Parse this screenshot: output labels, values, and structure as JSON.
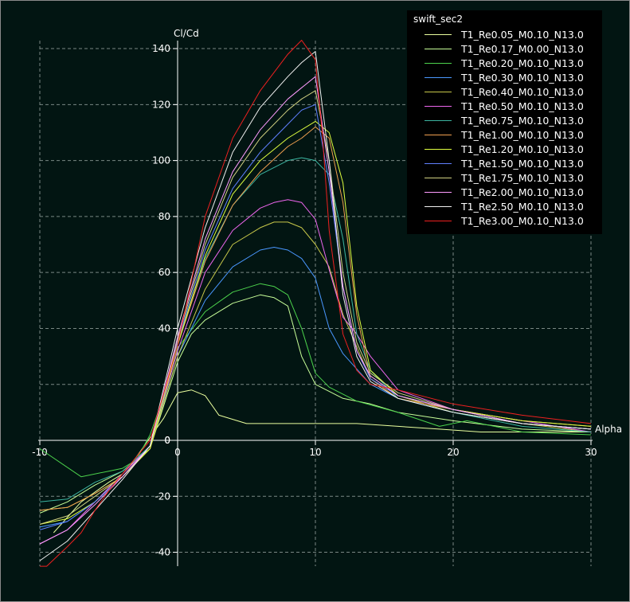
{
  "chart_data": {
    "type": "line",
    "title": "",
    "xlabel": "Alpha",
    "ylabel": "Cl/Cd",
    "xlim": [
      -10,
      30
    ],
    "ylim": [
      -45,
      145
    ],
    "grid": true,
    "legend_title": "swift_sec2",
    "legend_position": "top-right",
    "x_ticks": [
      -10,
      0,
      10,
      20,
      30
    ],
    "y_ticks": [
      -40,
      -20,
      0,
      40,
      60,
      80,
      100,
      120,
      140
    ],
    "series": [
      {
        "name": "T1_Re0.05_M0.10_N13.0",
        "color": "#eaff9e",
        "x": [
          -9,
          -7,
          -5,
          -4,
          -3,
          -2,
          -1,
          0,
          1,
          2,
          3,
          5,
          7,
          10,
          13,
          16,
          19,
          22,
          25,
          30
        ],
        "y": [
          -33,
          -22,
          -15,
          -12,
          -6,
          1,
          8,
          17,
          18,
          16,
          9,
          6,
          6,
          6,
          6,
          5,
          4,
          3,
          3,
          3
        ]
      },
      {
        "name": "T1_Re0.17_M0.00_N13.0",
        "color": "#c8ff99",
        "x": [
          -10,
          -8,
          -6,
          -4,
          -2,
          0,
          1,
          2,
          4,
          6,
          7,
          8,
          9,
          10,
          12,
          14,
          16,
          20,
          25,
          30
        ],
        "y": [
          -26,
          -22,
          -16,
          -11,
          -3,
          28,
          38,
          43,
          49,
          52,
          51,
          48,
          30,
          20,
          15,
          13,
          10,
          7,
          4,
          3
        ]
      },
      {
        "name": "T1_Re0.20_M0.10_N13.0",
        "color": "#4cd24c",
        "x": [
          -10,
          -7,
          -5,
          -4,
          -3,
          -2,
          -1,
          0,
          2,
          4,
          6,
          7,
          8,
          9,
          10,
          11,
          13,
          16,
          19,
          21,
          25,
          30
        ],
        "y": [
          -3,
          -13,
          -11,
          -10,
          -7,
          2,
          16,
          33,
          46,
          53,
          56,
          55,
          52,
          40,
          24,
          19,
          14,
          10,
          5,
          7,
          3,
          2
        ]
      },
      {
        "name": "T1_Re0.30_M0.10_N13.0",
        "color": "#4a97ff",
        "x": [
          -10,
          -8,
          -6,
          -4,
          -2,
          0,
          2,
          4,
          6,
          7,
          8,
          9,
          10,
          11,
          12,
          14,
          16,
          20,
          25,
          30
        ],
        "y": [
          -31,
          -29,
          -22,
          -13,
          -2,
          30,
          50,
          62,
          68,
          69,
          68,
          65,
          58,
          40,
          31,
          20,
          15,
          10,
          6,
          4
        ]
      },
      {
        "name": "T1_Re0.40_M0.10_N13.0",
        "color": "#c8c84a",
        "x": [
          -10,
          -8,
          -6,
          -4,
          -2,
          0,
          2,
          4,
          6,
          7,
          8,
          9,
          10,
          11,
          12,
          14,
          16,
          20,
          25,
          30
        ],
        "y": [
          -25,
          -24,
          -19,
          -13,
          -3,
          30,
          54,
          70,
          76,
          78,
          78,
          76,
          70,
          62,
          45,
          22,
          16,
          10,
          6,
          3
        ]
      },
      {
        "name": "T1_Re0.50_M0.10_N13.0",
        "color": "#ee66ee",
        "x": [
          -10,
          -8,
          -6,
          -4,
          -2,
          0,
          2,
          4,
          6,
          7,
          8,
          9,
          10,
          11,
          12,
          13,
          14,
          16,
          20,
          25,
          30
        ],
        "y": [
          -37,
          -32,
          -22,
          -12,
          -2,
          32,
          60,
          75,
          83,
          85,
          86,
          85,
          79,
          61,
          44,
          38,
          30,
          18,
          11,
          7,
          3
        ]
      },
      {
        "name": "T1_Re0.75_M0.10_N13.0",
        "color": "#3cb4a0",
        "x": [
          -10,
          -8,
          -6,
          -4,
          -2,
          0,
          2,
          4,
          6,
          8,
          9,
          10,
          11,
          12,
          13,
          14,
          16,
          20,
          25,
          30
        ],
        "y": [
          -22,
          -21,
          -15,
          -11,
          -2,
          35,
          65,
          84,
          95,
          100,
          101,
          100,
          95,
          72,
          38,
          25,
          15,
          10,
          5,
          3
        ]
      },
      {
        "name": "T1_Re1.00_M0.10_N13.0",
        "color": "#f0a050",
        "x": [
          -10,
          -8,
          -6,
          -4,
          -2,
          0,
          2,
          4,
          6,
          8,
          9,
          10,
          11,
          12,
          13,
          14,
          16,
          20,
          25,
          30
        ],
        "y": [
          -25,
          -24,
          -19,
          -13,
          -3,
          34,
          64,
          84,
          96,
          105,
          108,
          112,
          108,
          85,
          45,
          22,
          15,
          11,
          7,
          5
        ]
      },
      {
        "name": "T1_Re1.20_M0.10_N13.0",
        "color": "#e0ff40",
        "x": [
          -10,
          -8,
          -6,
          -4,
          -2,
          0,
          2,
          4,
          6,
          8,
          10,
          11,
          12,
          13,
          14,
          16,
          20,
          25,
          30
        ],
        "y": [
          -30,
          -28,
          -22,
          -13,
          -3,
          34,
          66,
          88,
          100,
          108,
          114,
          110,
          92,
          48,
          25,
          16,
          11,
          7,
          5
        ]
      },
      {
        "name": "T1_Re1.50_M0.10_N13.0",
        "color": "#6080ff",
        "x": [
          -10,
          -8,
          -6,
          -4,
          -2,
          0,
          2,
          4,
          6,
          8,
          9,
          10,
          11,
          12,
          13,
          14,
          16,
          20,
          25,
          30
        ],
        "y": [
          -32,
          -29,
          -22,
          -13,
          -2,
          35,
          68,
          90,
          103,
          113,
          118,
          120,
          92,
          55,
          32,
          22,
          16,
          11,
          6,
          4
        ]
      },
      {
        "name": "T1_Re1.75_M0.10_N13.0",
        "color": "#d2d282",
        "x": [
          -10,
          -8,
          -6,
          -4,
          -2,
          0,
          2,
          4,
          6,
          8,
          9,
          10,
          11,
          12,
          13,
          14,
          16,
          20,
          25,
          30
        ],
        "y": [
          -30,
          -27,
          -20,
          -13,
          -2,
          36,
          70,
          94,
          108,
          118,
          122,
          125,
          100,
          60,
          35,
          24,
          17,
          11,
          6,
          4
        ]
      },
      {
        "name": "T1_Re2.00_M0.10_N13.0",
        "color": "#ff9cff",
        "x": [
          -10,
          -8,
          -6,
          -4,
          -2,
          0,
          2,
          4,
          6,
          8,
          9,
          10,
          11,
          12,
          13,
          14,
          16,
          20,
          25,
          30
        ],
        "y": [
          -37,
          -32,
          -23,
          -13,
          -2,
          37,
          72,
          96,
          111,
          122,
          126,
          130,
          96,
          55,
          32,
          23,
          16,
          11,
          6,
          4
        ]
      },
      {
        "name": "T1_Re2.50_M0.10_N13.0",
        "color": "#f0f0f0",
        "x": [
          -10,
          -8,
          -6,
          -4,
          -2,
          0,
          2,
          4,
          6,
          8,
          9,
          10,
          11,
          12,
          13,
          14,
          16,
          20,
          25,
          30
        ],
        "y": [
          -43,
          -36,
          -25,
          -14,
          -2,
          40,
          76,
          103,
          119,
          130,
          135,
          139,
          100,
          52,
          30,
          21,
          15,
          10,
          6,
          4
        ]
      },
      {
        "name": "T1_Re3.00_M0.10_N13.0",
        "color": "#ee2020",
        "x": [
          -10,
          -9.5,
          -8,
          -7,
          -6,
          -5,
          -4,
          -2,
          0,
          2,
          4,
          6,
          8,
          9,
          10,
          10.5,
          11,
          12,
          13,
          14,
          16,
          20,
          25,
          30
        ],
        "y": [
          -45,
          -45,
          -38,
          -33,
          -25,
          -18,
          -12,
          0,
          34,
          80,
          108,
          125,
          138,
          143,
          136,
          110,
          75,
          38,
          25,
          20,
          18,
          13,
          9,
          6
        ]
      }
    ]
  }
}
